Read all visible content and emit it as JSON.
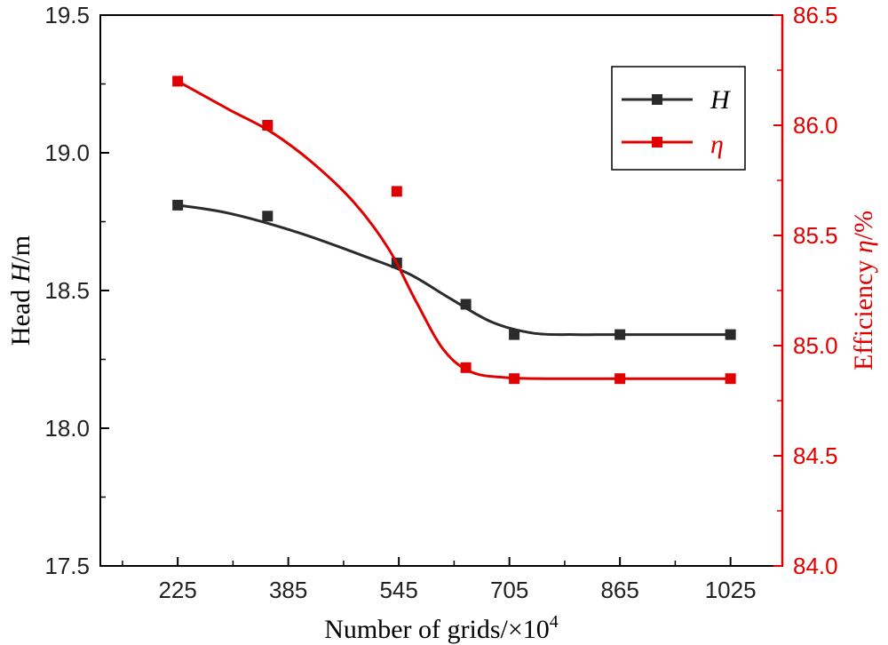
{
  "chart_data": {
    "type": "line",
    "title": "",
    "xlabel": {
      "prefix": "Number of grids/×10",
      "sup": "4"
    },
    "ylabel_left": {
      "prefix": "Head ",
      "var": "H",
      "suffix": "/m"
    },
    "ylabel_right": {
      "prefix": "Efficiency ",
      "var": "η",
      "suffix": "/%"
    },
    "x_ticks": [
      225,
      385,
      545,
      705,
      865,
      1025
    ],
    "xlim": [
      113,
      1100
    ],
    "ylim_left": [
      17.5,
      19.5
    ],
    "y_ticks_left": [
      "17.5",
      "18.0",
      "18.5",
      "19.0",
      "19.5"
    ],
    "ylim_right": [
      84.0,
      86.5
    ],
    "y_ticks_right": [
      "84.0",
      "84.5",
      "85.0",
      "85.5",
      "86.0",
      "86.5"
    ],
    "series": [
      {
        "name": "H",
        "axis": "left",
        "color": "#2b2b2b",
        "x": [
          225,
          355,
          542,
          642,
          712,
          865,
          1025
        ],
        "y": [
          18.81,
          18.77,
          18.6,
          18.45,
          18.34,
          18.34,
          18.34
        ],
        "fit": [
          [
            225,
            18.81
          ],
          [
            300,
            18.78
          ],
          [
            400,
            18.71
          ],
          [
            500,
            18.62
          ],
          [
            560,
            18.56
          ],
          [
            620,
            18.47
          ],
          [
            680,
            18.385
          ],
          [
            740,
            18.345
          ],
          [
            800,
            18.34
          ],
          [
            865,
            18.34
          ],
          [
            1025,
            18.34
          ]
        ]
      },
      {
        "name": "η",
        "axis": "right",
        "color": "#e00000",
        "x": [
          225,
          355,
          542,
          642,
          712,
          865,
          1025
        ],
        "y": [
          86.2,
          86.0,
          85.7,
          84.9,
          84.85,
          84.85,
          84.85
        ],
        "fit": [
          [
            225,
            86.2
          ],
          [
            300,
            86.07
          ],
          [
            360,
            85.97
          ],
          [
            420,
            85.83
          ],
          [
            480,
            85.65
          ],
          [
            530,
            85.44
          ],
          [
            570,
            85.2
          ],
          [
            610,
            84.98
          ],
          [
            650,
            84.88
          ],
          [
            700,
            84.855
          ],
          [
            760,
            84.85
          ],
          [
            865,
            84.85
          ],
          [
            1025,
            84.85
          ]
        ]
      }
    ],
    "legend": {
      "position": "top-right",
      "entries": [
        "H",
        "η"
      ]
    }
  }
}
